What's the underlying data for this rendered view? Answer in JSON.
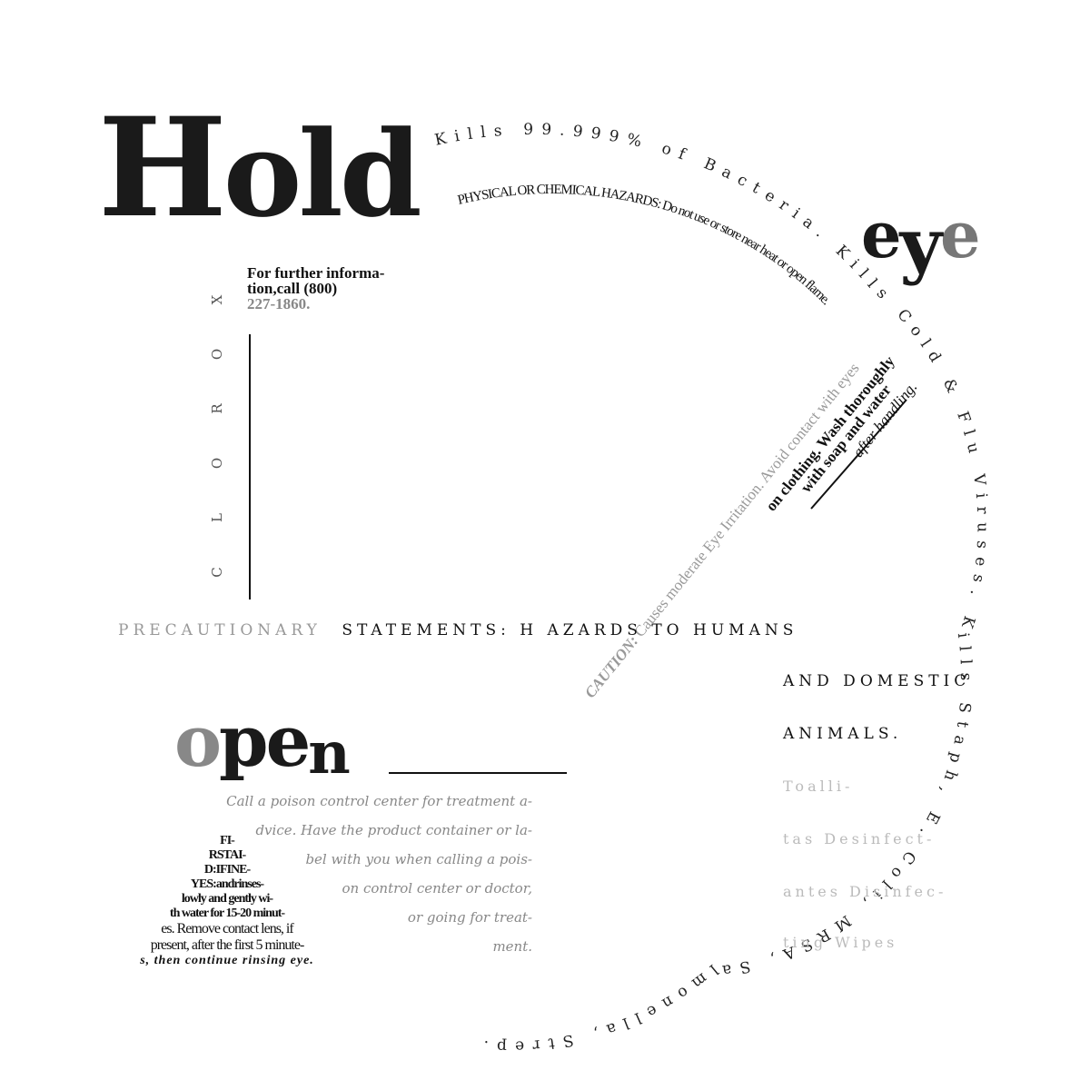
{
  "hold": {
    "first": "H",
    "rest": "old"
  },
  "eye": {
    "e1": "e",
    "y": "y",
    "e2": "e"
  },
  "open": {
    "o": "o",
    "pe": "pe",
    "n": "n"
  },
  "info": {
    "line1": "For further informa-",
    "line2": "tion,call (800)",
    "line3": "227-1860."
  },
  "clorox_letters": [
    "X",
    "O",
    "R",
    "O",
    "L",
    "C"
  ],
  "arc_outer": "Kills 99.999% of Bacteria. Kills Cold & Flu Viruses. Kills Staph, E. Coli, MRSA, Salmonella, Strep.",
  "arc_inner": "PHYSICAL OR CHEMICAL HAZARDS: Do not use or store near heat or open flame.",
  "caution": {
    "label": "CAUTION:",
    "text": "Causes moderate Eye Irritation. Avoid contact with eyes",
    "line2": "on clothing. Wash thoroughly",
    "line3": "with soap and water",
    "line4": "after handling."
  },
  "precautionary": {
    "gray": "PRECAUTIONARY",
    "black": "STATEMENTS: H AZARDS TO HUMANS"
  },
  "animals": {
    "line1": "AND DOMESTIC",
    "line2": "ANIMALS."
  },
  "toallitas": [
    "Toalli-",
    "tas Desinfect-",
    "antes Disinfec-",
    "ting Wipes"
  ],
  "poison": [
    "Call a poison control center for treatment a-",
    "dvice. Have the product container or la-",
    "bel with you when calling a pois-",
    "on control center or doctor,",
    "or going for treat-",
    "ment."
  ],
  "first_aid": [
    "FI-",
    "RSTAI-",
    "D:IFINE-",
    "YES:andrinses-",
    "lowly and gently wi-",
    "th water for 15-20 minut-",
    "es. Remove contact lens, if",
    "present, after the first 5 minute-"
  ],
  "first_aid_last": "s, then continue rinsing eye.",
  "colors": {
    "black": "#1a1a1a",
    "gray": "#888888",
    "light_gray": "#bbbbbb"
  }
}
